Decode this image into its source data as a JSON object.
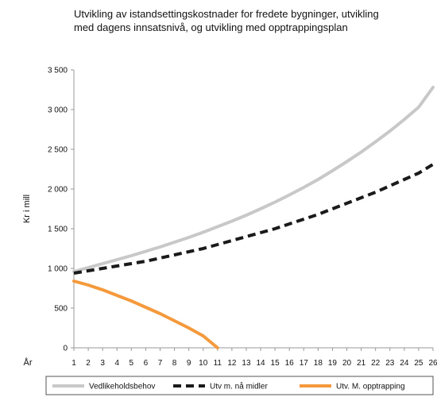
{
  "chart_data": {
    "type": "line",
    "title_lines": [
      "Utvikling av istandsettingskostnader for fredete bygninger, utvikling",
      "med dagens innsatsnivå, og utvikling med opptrappingsplan"
    ],
    "ylabel": "Kr   i mill",
    "xlabel": "År",
    "ylim": [
      0,
      3500
    ],
    "yticks": [
      0,
      500,
      1000,
      1500,
      2000,
      2500,
      3000,
      3500
    ],
    "ytick_labels": [
      "0",
      "500",
      "1 000",
      "1 500",
      "2 000",
      "2 500",
      "3 000",
      "3 500"
    ],
    "x": [
      1,
      2,
      3,
      4,
      5,
      6,
      7,
      8,
      9,
      10,
      11,
      12,
      13,
      14,
      15,
      16,
      17,
      18,
      19,
      20,
      21,
      22,
      23,
      24,
      25,
      26
    ],
    "grid": false,
    "legend_position": "bottom",
    "series": [
      {
        "name": "Vedlikeholdsbehov",
        "color": "#c8c8c8",
        "style": "solid",
        "x": [
          1,
          2,
          3,
          4,
          5,
          6,
          7,
          8,
          9,
          10,
          11,
          12,
          13,
          14,
          15,
          16,
          17,
          18,
          19,
          20,
          21,
          22,
          23,
          24,
          25,
          26
        ],
        "values": [
          960,
          1010,
          1060,
          1110,
          1160,
          1215,
          1270,
          1330,
          1390,
          1455,
          1525,
          1595,
          1670,
          1750,
          1835,
          1925,
          2020,
          2120,
          2230,
          2345,
          2465,
          2595,
          2730,
          2875,
          3030,
          3280
        ]
      },
      {
        "name": "Utv m. nå midler",
        "color": "#1a1a1a",
        "style": "dashed",
        "x": [
          1,
          2,
          3,
          4,
          5,
          6,
          7,
          8,
          9,
          10,
          11,
          12,
          13,
          14,
          15,
          16,
          17,
          18,
          19,
          20,
          21,
          22,
          23,
          24,
          25,
          26
        ],
        "values": [
          940,
          970,
          1000,
          1030,
          1060,
          1090,
          1130,
          1170,
          1210,
          1250,
          1300,
          1350,
          1400,
          1450,
          1500,
          1560,
          1620,
          1680,
          1750,
          1820,
          1890,
          1960,
          2040,
          2120,
          2200,
          2310
        ]
      },
      {
        "name": "Utv. M. opptrapping",
        "color": "#f59a3c",
        "style": "solid",
        "x": [
          1,
          2,
          3,
          4,
          5,
          6,
          7,
          8,
          9,
          10,
          11
        ],
        "values": [
          840,
          790,
          730,
          660,
          590,
          510,
          430,
          340,
          250,
          150,
          0
        ]
      }
    ]
  }
}
